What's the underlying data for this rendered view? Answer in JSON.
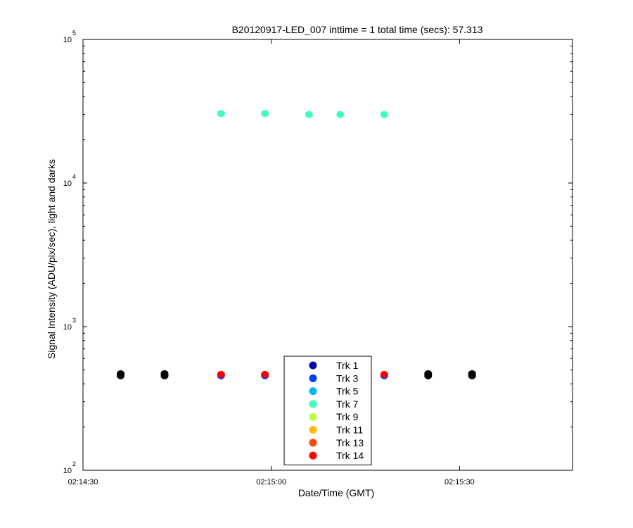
{
  "chart_data": {
    "type": "scatter",
    "title": "B20120917-LED_007 inttime = 1 total time (secs): 57.313",
    "xlabel": "Date/Time (GMT)",
    "ylabel": "Signal Intensity (ADU/pix/sec), light and darks",
    "x_ticks": [
      "02:14:30",
      "02:15:00",
      "02:15:30"
    ],
    "xlim": [
      "02:14:30",
      "02:15:48"
    ],
    "y_scale": "log",
    "ylim": [
      100,
      100000
    ],
    "y_ticks": [
      {
        "base": "10",
        "exp": "2",
        "value": 100
      },
      {
        "base": "10",
        "exp": "3",
        "value": 1000
      },
      {
        "base": "10",
        "exp": "4",
        "value": 10000
      },
      {
        "base": "10",
        "exp": "5",
        "value": 100000
      }
    ],
    "grid": false,
    "legend_position": "bottom-center",
    "series": [
      {
        "name": "Trk 1",
        "color": "#0000aa",
        "points": []
      },
      {
        "name": "Trk 3",
        "color": "#0040ff",
        "points": [
          [
            "02:14:52",
            455
          ],
          [
            "02:14:59",
            455
          ],
          [
            "02:15:18",
            455
          ]
        ]
      },
      {
        "name": "Trk 5",
        "color": "#00b8f0",
        "points": []
      },
      {
        "name": "Trk 7",
        "color": "#40ffc0",
        "points": [
          [
            "02:14:52",
            30500
          ],
          [
            "02:14:59",
            30500
          ],
          [
            "02:15:06",
            30000
          ],
          [
            "02:15:11",
            30000
          ],
          [
            "02:15:18",
            30000
          ]
        ]
      },
      {
        "name": "Trk 9",
        "color": "#b8ff40",
        "points": []
      },
      {
        "name": "Trk 11",
        "color": "#ffb800",
        "points": []
      },
      {
        "name": "Trk 13",
        "color": "#ff4800",
        "points": []
      },
      {
        "name": "Trk 14",
        "color": "#ff0000",
        "points": [
          [
            "02:14:52",
            465
          ],
          [
            "02:14:59",
            465
          ],
          [
            "02:15:18",
            465
          ]
        ]
      },
      {
        "name": "",
        "color": "#000000",
        "points": [
          [
            "02:14:36",
            455
          ],
          [
            "02:14:36",
            470
          ],
          [
            "02:14:43",
            455
          ],
          [
            "02:14:43",
            470
          ],
          [
            "02:15:25",
            455
          ],
          [
            "02:15:25",
            470
          ],
          [
            "02:15:32",
            455
          ],
          [
            "02:15:32",
            470
          ]
        ]
      }
    ]
  }
}
